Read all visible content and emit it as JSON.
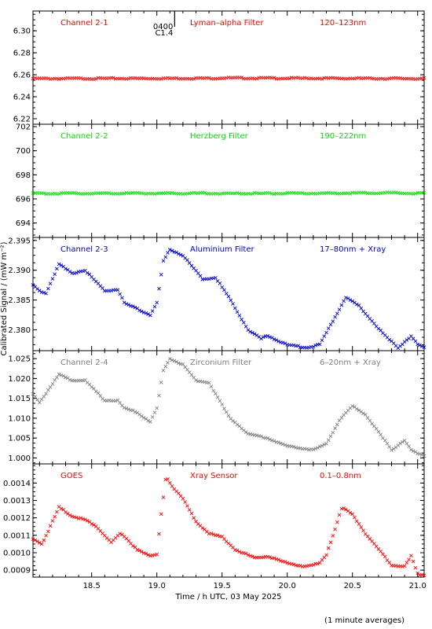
{
  "footer_note": "(1 minute averages)",
  "flare_marker": {
    "lines": [
      "0400",
      "C1.4"
    ],
    "x": 19.04
  },
  "chart_data": {
    "type": "scatter",
    "xlabel": "Time / h UTC, 03 May 2025",
    "ylabel": "Calibrated Signal / (mW m⁻²)",
    "xlim": [
      18.05,
      21.05
    ],
    "xticks": [
      18.5,
      19.0,
      19.5,
      20.0,
      20.5,
      21.0
    ],
    "xtick_labels": [
      "18.5",
      "19.0",
      "19.5",
      "20.0",
      "20.5",
      "21.0"
    ],
    "grid": false,
    "panels": [
      {
        "name": "Channel 2-1",
        "filter": "Lyman–alpha Filter",
        "band": "120–123nm",
        "color": "#ff0000",
        "ylim": [
          6.215,
          6.318
        ],
        "yticks": [
          6.22,
          6.24,
          6.26,
          6.28,
          6.3
        ],
        "ytick_labels": [
          "6.22",
          "6.24",
          "6.26",
          "6.28",
          "6.30"
        ],
        "keyframes": [
          [
            18.05,
            6.2565
          ],
          [
            19.45,
            6.2568
          ],
          [
            19.5,
            6.2572
          ],
          [
            19.6,
            6.257
          ],
          [
            21.05,
            6.2565
          ]
        ]
      },
      {
        "name": "Channel 2-2",
        "filter": "Herzberg Filter",
        "band": "190–222nm",
        "color": "#00e000",
        "ylim": [
          692.8,
          702.2
        ],
        "yticks": [
          694,
          696,
          698,
          700,
          702
        ],
        "ytick_labels": [
          "694",
          "696",
          "698",
          "700",
          "702"
        ],
        "keyframes": [
          [
            18.05,
            696.45
          ],
          [
            19.0,
            696.47
          ],
          [
            20.0,
            696.45
          ],
          [
            20.8,
            696.5
          ],
          [
            21.05,
            696.45
          ]
        ]
      },
      {
        "name": "Channel 2-3",
        "filter": "Aluminium Filter",
        "band": "17–80nm + Xray",
        "color": "#0000cc",
        "ylim": [
          2.3765,
          2.3955
        ],
        "yticks": [
          2.38,
          2.385,
          2.39,
          2.395
        ],
        "ytick_labels": [
          "2.380",
          "2.385",
          "2.390",
          "2.395"
        ],
        "keyframes": [
          [
            18.05,
            2.3875
          ],
          [
            18.1,
            2.3865
          ],
          [
            18.15,
            2.3862
          ],
          [
            18.25,
            2.391
          ],
          [
            18.35,
            2.3895
          ],
          [
            18.45,
            2.39
          ],
          [
            18.6,
            2.3865
          ],
          [
            18.7,
            2.3868
          ],
          [
            18.75,
            2.3845
          ],
          [
            18.85,
            2.3835
          ],
          [
            18.95,
            2.3825
          ],
          [
            19.0,
            2.3845
          ],
          [
            19.05,
            2.3915
          ],
          [
            19.1,
            2.3935
          ],
          [
            19.2,
            2.3925
          ],
          [
            19.35,
            2.3885
          ],
          [
            19.45,
            2.3888
          ],
          [
            19.55,
            2.3855
          ],
          [
            19.7,
            2.38
          ],
          [
            19.8,
            2.3785
          ],
          [
            19.85,
            2.379
          ],
          [
            20.0,
            2.3775
          ],
          [
            20.15,
            2.377
          ],
          [
            20.25,
            2.3775
          ],
          [
            20.35,
            2.3815
          ],
          [
            20.45,
            2.3855
          ],
          [
            20.55,
            2.384
          ],
          [
            20.75,
            2.379
          ],
          [
            20.85,
            2.377
          ],
          [
            20.95,
            2.379
          ],
          [
            21.0,
            2.3775
          ],
          [
            21.05,
            2.377
          ]
        ]
      },
      {
        "name": "Channel 2-4",
        "filter": "Zirconium Filter",
        "band": "6–20nm + Xray",
        "color": "#808080",
        "ylim": [
          0.9985,
          1.027
        ],
        "yticks": [
          1.0,
          1.005,
          1.01,
          1.015,
          1.02,
          1.025
        ],
        "ytick_labels": [
          "1.000",
          "1.005",
          "1.010",
          "1.015",
          "1.020",
          "1.025"
        ],
        "keyframes": [
          [
            18.05,
            1.016
          ],
          [
            18.1,
            1.014
          ],
          [
            18.25,
            1.021
          ],
          [
            18.35,
            1.0195
          ],
          [
            18.45,
            1.0195
          ],
          [
            18.6,
            1.0145
          ],
          [
            18.7,
            1.0145
          ],
          [
            18.75,
            1.0125
          ],
          [
            18.85,
            1.0115
          ],
          [
            18.95,
            1.009
          ],
          [
            19.0,
            1.0125
          ],
          [
            19.05,
            1.022
          ],
          [
            19.1,
            1.025
          ],
          [
            19.2,
            1.0235
          ],
          [
            19.3,
            1.0195
          ],
          [
            19.4,
            1.019
          ],
          [
            19.55,
            1.0105
          ],
          [
            19.7,
            1.006
          ],
          [
            19.85,
            1.005
          ],
          [
            20.0,
            1.003
          ],
          [
            20.2,
            1.002
          ],
          [
            20.3,
            1.0035
          ],
          [
            20.4,
            1.0095
          ],
          [
            20.5,
            1.013
          ],
          [
            20.6,
            1.011
          ],
          [
            20.8,
            1.002
          ],
          [
            20.9,
            1.0045
          ],
          [
            20.95,
            1.002
          ],
          [
            21.0,
            1.001
          ],
          [
            21.05,
            1.0005
          ]
        ]
      },
      {
        "name": "GOES",
        "filter": "Xray Sensor",
        "band": "0.1–0.8nm",
        "color": "#ff0000",
        "ylim": [
          0.00086,
          0.00151
        ],
        "yticks": [
          0.0009,
          0.001,
          0.0011,
          0.0012,
          0.0013,
          0.0014
        ],
        "ytick_labels": [
          "0.0009",
          "0.0010",
          "0.0011",
          "0.0012",
          "0.0013",
          "0.0014"
        ],
        "keyframes": [
          [
            18.05,
            0.00108
          ],
          [
            18.12,
            0.00105
          ],
          [
            18.2,
            0.00118
          ],
          [
            18.25,
            0.00126
          ],
          [
            18.35,
            0.00121
          ],
          [
            18.45,
            0.00119
          ],
          [
            18.55,
            0.00114
          ],
          [
            18.65,
            0.00106
          ],
          [
            18.72,
            0.00111
          ],
          [
            18.85,
            0.00102
          ],
          [
            18.95,
            0.00098
          ],
          [
            19.0,
            0.00099
          ],
          [
            19.03,
            0.0012
          ],
          [
            19.07,
            0.00144
          ],
          [
            19.12,
            0.00138
          ],
          [
            19.2,
            0.00131
          ],
          [
            19.3,
            0.00118
          ],
          [
            19.4,
            0.00111
          ],
          [
            19.5,
            0.00109
          ],
          [
            19.6,
            0.00102
          ],
          [
            19.75,
            0.00097
          ],
          [
            19.85,
            0.00098
          ],
          [
            20.0,
            0.00094
          ],
          [
            20.15,
            0.00092
          ],
          [
            20.25,
            0.00094
          ],
          [
            20.3,
            0.00099
          ],
          [
            20.35,
            0.0011
          ],
          [
            20.42,
            0.00126
          ],
          [
            20.5,
            0.00122
          ],
          [
            20.6,
            0.00111
          ],
          [
            20.8,
            0.00093
          ],
          [
            20.9,
            0.00092
          ],
          [
            20.95,
            0.00098
          ],
          [
            21.0,
            0.00088
          ],
          [
            21.05,
            0.00087
          ]
        ]
      }
    ]
  }
}
